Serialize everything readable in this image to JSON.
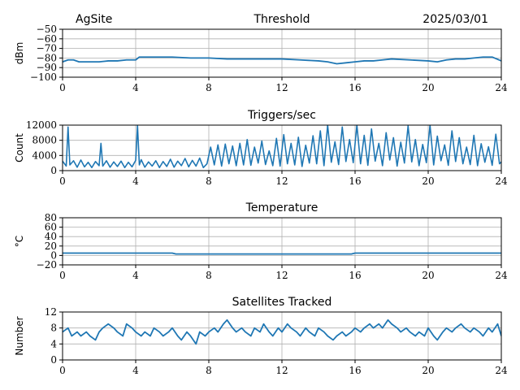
{
  "header": {
    "site": "AgSite",
    "date": "2025/03/01"
  },
  "chart_data": [
    {
      "type": "line",
      "title": "Threshold",
      "ylabel": "dBm",
      "xlabel": "",
      "xlim": [
        0,
        24
      ],
      "ylim": [
        -100,
        -50
      ],
      "xticks": [
        0,
        4,
        8,
        12,
        16,
        20,
        24
      ],
      "yticks": [
        -100,
        -90,
        -80,
        -70,
        -60,
        -50
      ],
      "ytick_labels": [
        "−100",
        "−90",
        "−80",
        "−70",
        "−60",
        "−50"
      ],
      "grid": true,
      "color": "#1f77b4",
      "series": [
        {
          "x": [
            0,
            0.3,
            0.6,
            0.9,
            1.2,
            1.5,
            2,
            2.5,
            3,
            3.5,
            4,
            4.2,
            4.5,
            5,
            6,
            7,
            8,
            9,
            10,
            11,
            12,
            13,
            14,
            14.5,
            15,
            15.5,
            16,
            16.5,
            17,
            17.5,
            18,
            19,
            20,
            20.5,
            21,
            21.5,
            22,
            22.5,
            23,
            23.5,
            24
          ],
          "y": [
            -84,
            -82,
            -82,
            -84,
            -84,
            -84,
            -84,
            -83,
            -83,
            -82,
            -82,
            -79,
            -79,
            -79,
            -79,
            -80,
            -80,
            -81,
            -81,
            -81,
            -81,
            -82,
            -83,
            -84,
            -86,
            -85,
            -84,
            -83,
            -83,
            -82,
            -81,
            -82,
            -83,
            -84,
            -82,
            -81,
            -81,
            -80,
            -79,
            -79,
            -83
          ]
        }
      ]
    },
    {
      "type": "line",
      "title": "Triggers/sec",
      "ylabel": "Count",
      "xlabel": "",
      "xlim": [
        0,
        24
      ],
      "ylim": [
        0,
        12000
      ],
      "xticks": [
        0,
        4,
        8,
        12,
        16,
        20,
        24
      ],
      "yticks": [
        0,
        4000,
        8000,
        12000
      ],
      "ytick_labels": [
        "0",
        "4000",
        "8000",
        "12000"
      ],
      "grid": true,
      "color": "#1f77b4",
      "series": [
        {
          "x": [
            0,
            0.2,
            0.3,
            0.4,
            0.6,
            0.8,
            1,
            1.2,
            1.4,
            1.6,
            1.8,
            2,
            2.1,
            2.2,
            2.4,
            2.6,
            2.8,
            3,
            3.2,
            3.4,
            3.6,
            3.8,
            4,
            4.1,
            4.2,
            4.3,
            4.5,
            4.7,
            4.9,
            5.1,
            5.3,
            5.5,
            5.7,
            5.9,
            6.1,
            6.3,
            6.5,
            6.7,
            6.9,
            7.1,
            7.3,
            7.5,
            7.7,
            7.9,
            8.1,
            8.3,
            8.5,
            8.7,
            8.9,
            9.1,
            9.3,
            9.5,
            9.7,
            9.9,
            10.1,
            10.3,
            10.5,
            10.7,
            10.9,
            11.1,
            11.3,
            11.5,
            11.7,
            11.9,
            12.1,
            12.3,
            12.5,
            12.7,
            12.9,
            13.1,
            13.3,
            13.5,
            13.7,
            13.9,
            14.1,
            14.3,
            14.5,
            14.7,
            14.9,
            15.1,
            15.3,
            15.5,
            15.7,
            15.9,
            16.1,
            16.3,
            16.5,
            16.7,
            16.9,
            17.1,
            17.3,
            17.5,
            17.7,
            17.9,
            18.1,
            18.3,
            18.5,
            18.7,
            18.9,
            19.1,
            19.3,
            19.5,
            19.7,
            19.9,
            20.1,
            20.3,
            20.5,
            20.7,
            20.9,
            21.1,
            21.3,
            21.5,
            21.7,
            21.9,
            22.1,
            22.3,
            22.5,
            22.7,
            22.9,
            23.1,
            23.3,
            23.5,
            23.7,
            23.9,
            24
          ],
          "y": [
            2500,
            1200,
            11500,
            1500,
            2600,
            900,
            2800,
            1000,
            2200,
            800,
            2400,
            1300,
            7200,
            1200,
            2600,
            900,
            2300,
            1100,
            2500,
            800,
            2200,
            1000,
            2700,
            11800,
            1500,
            2900,
            900,
            2300,
            1200,
            2600,
            800,
            2400,
            1100,
            3000,
            900,
            2500,
            1300,
            3200,
            1000,
            2700,
            1200,
            3300,
            800,
            1800,
            6200,
            1500,
            6800,
            1200,
            7000,
            1800,
            6500,
            1300,
            7200,
            1500,
            8200,
            1400,
            6200,
            2000,
            7800,
            1600,
            5200,
            1300,
            8500,
            1200,
            9500,
            1800,
            7200,
            1500,
            8800,
            1100,
            6700,
            2000,
            9200,
            1800,
            10500,
            1300,
            12000,
            2200,
            7600,
            1600,
            11500,
            2400,
            8200,
            2100,
            12000,
            1800,
            9300,
            1400,
            11000,
            2500,
            7200,
            1300,
            10000,
            2800,
            8700,
            1200,
            7500,
            2000,
            11800,
            2300,
            8200,
            1300,
            6900,
            2100,
            12000,
            1500,
            9100,
            2600,
            6800,
            1400,
            10500,
            2400,
            8700,
            1800,
            6200,
            1600,
            9300,
            1300,
            7100,
            2200,
            6300,
            1400,
            9600,
            1800,
            2300
          ]
        }
      ]
    },
    {
      "type": "line",
      "title": "Temperature",
      "ylabel": "°C",
      "xlabel": "",
      "xlim": [
        0,
        24
      ],
      "ylim": [
        -20,
        80
      ],
      "xticks": [
        0,
        4,
        8,
        12,
        16,
        20,
        24
      ],
      "yticks": [
        -20,
        0,
        20,
        40,
        60,
        80
      ],
      "ytick_labels": [
        "−20",
        "0",
        "20",
        "40",
        "60",
        "80"
      ],
      "grid": true,
      "color": "#1f77b4",
      "series": [
        {
          "x": [
            0,
            6,
            6.2,
            15.8,
            16,
            24
          ],
          "y": [
            5,
            5,
            3,
            3,
            5,
            5
          ]
        }
      ]
    },
    {
      "type": "line",
      "title": "Satellites Tracked",
      "ylabel": "Number",
      "xlabel": "",
      "xlim": [
        0,
        24
      ],
      "ylim": [
        0,
        12
      ],
      "xticks": [
        0,
        4,
        8,
        12,
        16,
        20,
        24
      ],
      "yticks": [
        0,
        4,
        8,
        12
      ],
      "ytick_labels": [
        "0",
        "4",
        "8",
        "12"
      ],
      "grid": true,
      "color": "#1f77b4",
      "series": [
        {
          "x": [
            0,
            0.3,
            0.5,
            0.8,
            1.0,
            1.3,
            1.5,
            1.8,
            2.0,
            2.2,
            2.5,
            2.8,
            3.0,
            3.3,
            3.5,
            3.8,
            4.0,
            4.3,
            4.5,
            4.8,
            5.0,
            5.3,
            5.5,
            5.8,
            6.0,
            6.3,
            6.5,
            6.8,
            7.0,
            7.3,
            7.5,
            7.8,
            8.0,
            8.3,
            8.5,
            8.8,
            9.0,
            9.3,
            9.5,
            9.8,
            10.0,
            10.3,
            10.5,
            10.8,
            11.0,
            11.3,
            11.5,
            11.8,
            12.0,
            12.3,
            12.5,
            12.8,
            13.0,
            13.3,
            13.5,
            13.8,
            14.0,
            14.3,
            14.5,
            14.8,
            15.0,
            15.3,
            15.5,
            15.8,
            16.0,
            16.3,
            16.5,
            16.8,
            17.0,
            17.3,
            17.5,
            17.8,
            18.0,
            18.3,
            18.5,
            18.8,
            19.0,
            19.3,
            19.5,
            19.8,
            20.0,
            20.3,
            20.5,
            20.8,
            21.0,
            21.3,
            21.5,
            21.8,
            22.0,
            22.3,
            22.5,
            22.8,
            23.0,
            23.3,
            23.5,
            23.8,
            24
          ],
          "y": [
            7,
            8,
            6,
            7,
            6,
            7,
            6,
            5,
            7,
            8,
            9,
            8,
            7,
            6,
            9,
            8,
            7,
            6,
            7,
            6,
            8,
            7,
            6,
            7,
            8,
            6,
            5,
            7,
            6,
            4,
            7,
            6,
            7,
            8,
            7,
            9,
            10,
            8,
            7,
            8,
            7,
            6,
            8,
            7,
            9,
            7,
            6,
            8,
            7,
            9,
            8,
            7,
            6,
            8,
            7,
            6,
            8,
            7,
            6,
            5,
            6,
            7,
            6,
            7,
            8,
            7,
            8,
            9,
            8,
            9,
            8,
            10,
            9,
            8,
            7,
            8,
            7,
            6,
            7,
            6,
            8,
            6,
            5,
            7,
            8,
            7,
            8,
            9,
            8,
            7,
            8,
            7,
            6,
            8,
            7,
            9,
            6
          ]
        }
      ]
    }
  ]
}
